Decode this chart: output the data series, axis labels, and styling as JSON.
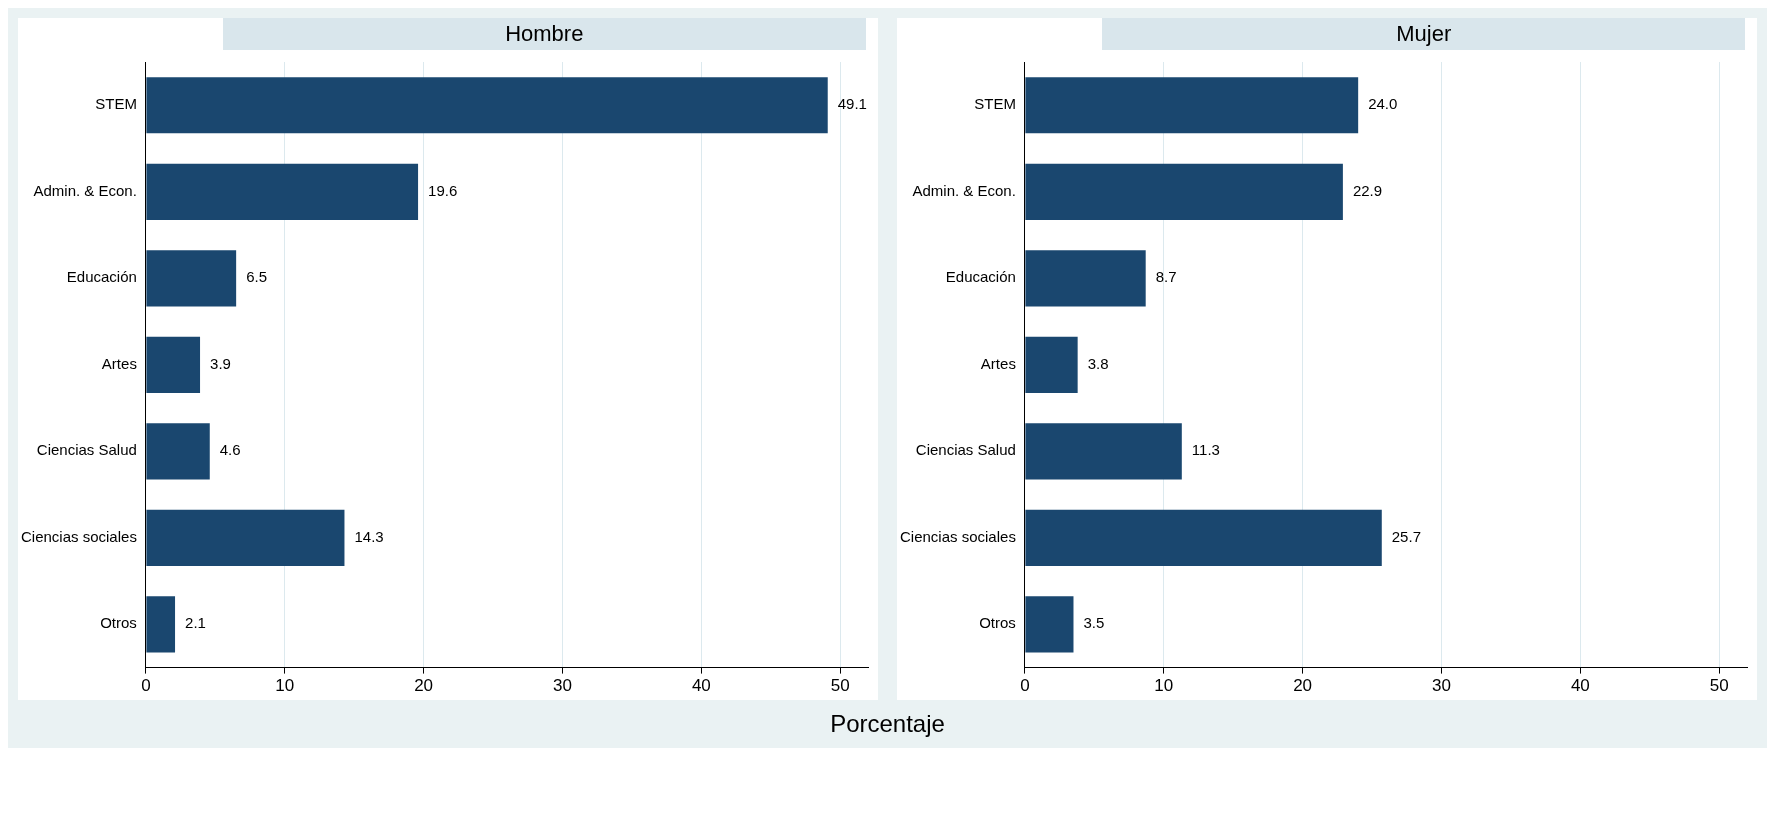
{
  "chart_data": [
    {
      "type": "bar",
      "orientation": "horizontal",
      "title": "Hombre",
      "xlabel": "Porcentaje",
      "categories": [
        "STEM",
        "Admin. & Econ.",
        "Educación",
        "Artes",
        "Ciencias Salud",
        "Ciencias sociales",
        "Otros"
      ],
      "values": [
        49.1,
        19.6,
        6.5,
        3.9,
        4.6,
        14.3,
        2.1
      ],
      "value_labels": [
        "49.1",
        "19.6",
        "6.5",
        "3.9",
        "4.6",
        "14.3",
        "2.1"
      ],
      "color": "#1a476f",
      "xlim": [
        0,
        52
      ],
      "xticks": [
        0,
        10,
        20,
        30,
        40,
        50
      ],
      "grid": "x",
      "legend": false
    },
    {
      "type": "bar",
      "orientation": "horizontal",
      "title": "Mujer",
      "categories": [
        "STEM",
        "Admin. & Econ.",
        "Educación",
        "Artes",
        "Ciencias Salud",
        "Ciencias sociales",
        "Otros"
      ],
      "values": [
        24.0,
        22.9,
        8.7,
        3.8,
        11.3,
        25.7,
        3.5
      ],
      "value_labels": [
        "24.0",
        "22.9",
        "8.7",
        "3.8",
        "11.3",
        "25.7",
        "3.5"
      ],
      "color": "#1a476f",
      "xlim": [
        0,
        52
      ],
      "xticks": [
        0,
        10,
        20,
        30,
        40,
        50
      ],
      "grid": "x",
      "legend": false
    }
  ]
}
